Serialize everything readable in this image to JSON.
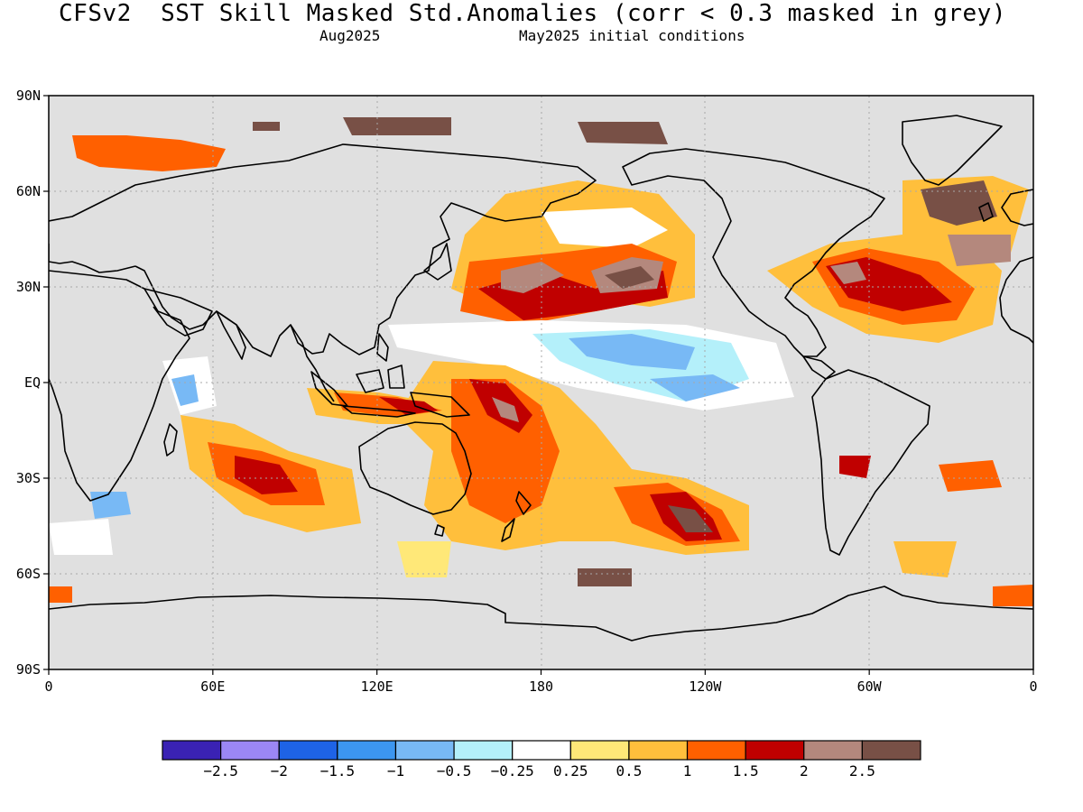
{
  "header": {
    "title": "CFSv2  SST Skill Masked Std.Anomalies (corr < 0.3 masked in grey)",
    "target_month": "Aug2025",
    "initial_conditions": "May2025 initial conditions"
  },
  "axes": {
    "lat_labels": [
      "90N",
      "60N",
      "30N",
      "EQ",
      "30S",
      "60S",
      "90S"
    ],
    "lon_labels": [
      "0",
      "60E",
      "120E",
      "180",
      "120W",
      "60W",
      "0"
    ]
  },
  "colorbar": {
    "colors": [
      "#3a22b4",
      "#9b87f5",
      "#1e63e6",
      "#3c96f0",
      "#78b9f5",
      "#b4f0fa",
      "#ffffff",
      "#ffe878",
      "#ffbf3c",
      "#ff6000",
      "#c00000",
      "#b4887d",
      "#785046"
    ],
    "labels": [
      "-2.5",
      "-2",
      "-1.5",
      "-1",
      "-0.5",
      "-0.25",
      "0.25",
      "0.5",
      "1",
      "1.5",
      "2",
      "2.5"
    ]
  },
  "colors": {
    "mask_grey": "#e0e0e0",
    "grid": "#a8a8a8"
  }
}
